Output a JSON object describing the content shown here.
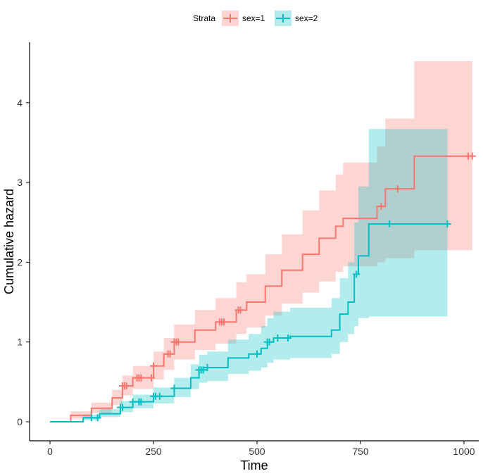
{
  "chart_data": {
    "type": "line",
    "title": "",
    "xlabel": "Time",
    "ylabel": "Cumulative hazard",
    "xlim": [
      -50,
      1040
    ],
    "ylim": [
      -0.24,
      4.79
    ],
    "xticks": [
      "0",
      "250",
      "500",
      "750",
      "1000"
    ],
    "xtick_values": [
      0,
      250,
      500,
      750,
      1000
    ],
    "yticks": [
      "0",
      "1",
      "2",
      "3",
      "4"
    ],
    "ytick_values": [
      0,
      1,
      2,
      3,
      4
    ],
    "legend": {
      "title": "Strata",
      "position": "top"
    },
    "series": [
      {
        "name": "sex=1",
        "color": "#F8766D",
        "times": [
          0,
          50,
          100,
          150,
          175,
          200,
          250,
          275,
          300,
          350,
          400,
          450,
          475,
          520,
          560,
          610,
          650,
          690,
          708,
          790,
          810,
          880,
          1020
        ],
        "values": [
          0,
          0.08,
          0.17,
          0.3,
          0.45,
          0.55,
          0.7,
          0.85,
          1.0,
          1.15,
          1.25,
          1.4,
          1.5,
          1.7,
          1.9,
          2.1,
          2.3,
          2.45,
          2.55,
          2.7,
          2.92,
          3.33,
          3.33
        ],
        "upper": [
          0,
          0.13,
          0.24,
          0.4,
          0.58,
          0.7,
          0.88,
          1.05,
          1.22,
          1.4,
          1.55,
          1.75,
          1.85,
          2.1,
          2.35,
          2.65,
          2.9,
          3.1,
          3.25,
          3.45,
          3.8,
          4.52,
          4.52
        ],
        "lower": [
          0,
          0.04,
          0.11,
          0.21,
          0.33,
          0.41,
          0.53,
          0.65,
          0.78,
          0.9,
          0.98,
          1.1,
          1.18,
          1.33,
          1.48,
          1.62,
          1.76,
          1.88,
          1.95,
          2.0,
          2.05,
          2.15,
          2.15
        ],
        "censored": [
          175,
          180,
          185,
          210,
          215,
          220,
          245,
          250,
          285,
          290,
          300,
          305,
          310,
          410,
          415,
          420,
          455,
          460,
          800,
          840,
          1010,
          1020
        ]
      },
      {
        "name": "sex=2",
        "color": "#00BFC4",
        "times": [
          0,
          80,
          120,
          170,
          200,
          250,
          300,
          340,
          360,
          380,
          430,
          480,
          510,
          525,
          540,
          580,
          650,
          680,
          700,
          720,
          735,
          745,
          770,
          960
        ],
        "values": [
          0,
          0.05,
          0.1,
          0.18,
          0.25,
          0.32,
          0.42,
          0.55,
          0.65,
          0.68,
          0.8,
          0.85,
          0.92,
          1.0,
          1.05,
          1.07,
          1.07,
          1.15,
          1.35,
          1.5,
          1.85,
          2.08,
          2.48,
          2.48
        ],
        "upper": [
          0,
          0.09,
          0.16,
          0.26,
          0.34,
          0.43,
          0.55,
          0.72,
          0.84,
          0.88,
          1.03,
          1.1,
          1.2,
          1.3,
          1.38,
          1.43,
          1.43,
          1.55,
          1.8,
          2.0,
          2.5,
          2.95,
          3.67,
          3.67
        ],
        "lower": [
          0,
          0.02,
          0.06,
          0.12,
          0.17,
          0.23,
          0.31,
          0.41,
          0.49,
          0.51,
          0.6,
          0.64,
          0.68,
          0.74,
          0.78,
          0.8,
          0.8,
          0.85,
          1.0,
          1.1,
          1.2,
          1.3,
          1.32,
          1.32
        ],
        "censored": [
          100,
          115,
          170,
          175,
          200,
          215,
          220,
          250,
          255,
          265,
          300,
          360,
          365,
          370,
          380,
          500,
          525,
          530,
          550,
          575,
          740,
          820,
          960
        ]
      }
    ]
  }
}
